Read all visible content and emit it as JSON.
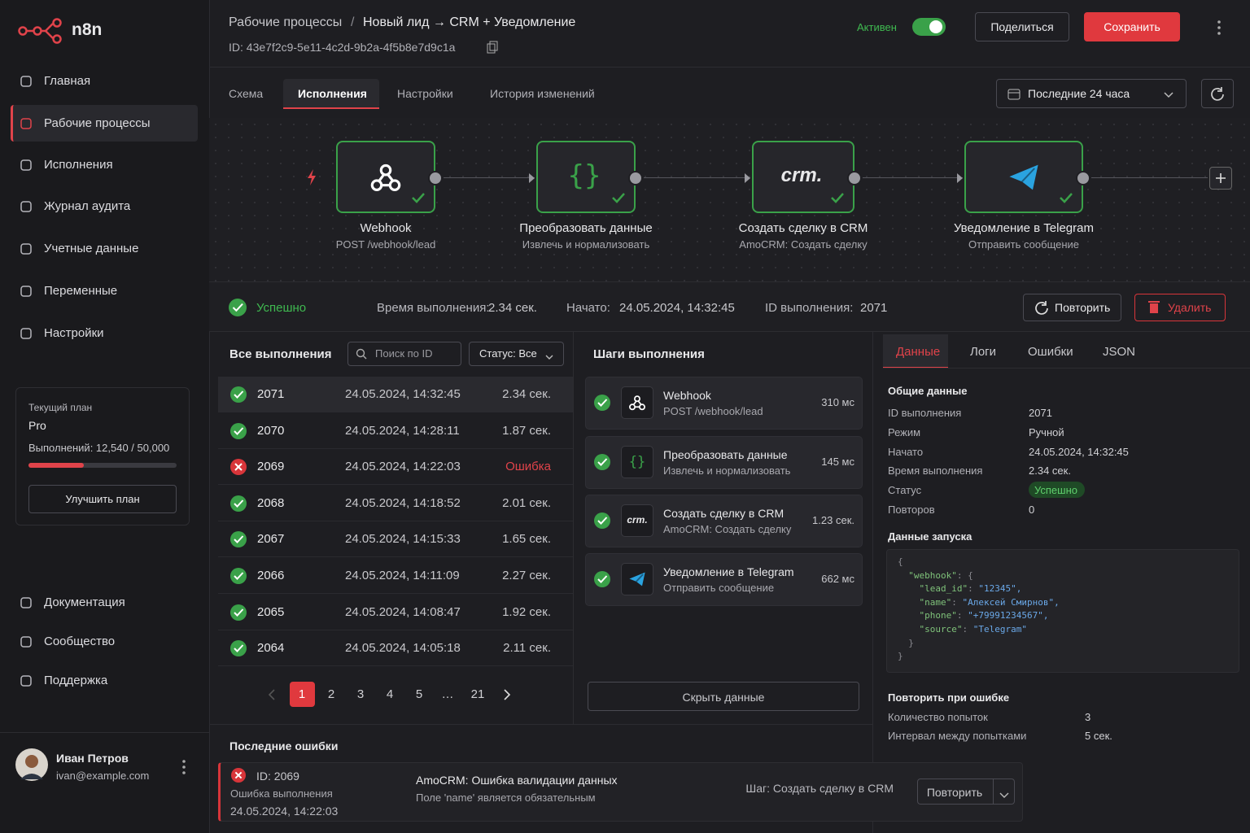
{
  "sidebar": {
    "logo": "n8n",
    "nav": [
      "Главная",
      "Рабочие процессы",
      "Исполнения",
      "Журнал аудита",
      "Учетные данные",
      "Переменные",
      "Настройки"
    ],
    "plan": {
      "label": "Текущий план",
      "name": "Pro",
      "usage": "Выполнений: 12,540 / 50,000",
      "button": "Улучшить план"
    },
    "links": [
      "Документация",
      "Сообщество",
      "Поддержка"
    ],
    "user": {
      "name": "Иван Петров",
      "email": "ivan@example.com"
    }
  },
  "header": {
    "breadcrumb_root": "Рабочие процессы",
    "separator": "/",
    "title": "Новый лид → CRM + Уведомление",
    "id": "ID: 43e7f2c9-5e11-4c2d-9b2a-4f5b8e7d9c1a",
    "status": "Активен",
    "share": "Поделиться",
    "save": "Сохранить"
  },
  "tabs": [
    "Схема",
    "Исполнения",
    "Настройки",
    "История изменений"
  ],
  "range": "Последние 24 часа",
  "nodes": [
    {
      "title": "Webhook",
      "subtitle": "POST /webhook/lead"
    },
    {
      "icon": "{}",
      "title": "Преобразовать данные",
      "subtitle": "Извлечь и нормализовать"
    },
    {
      "icon": "crm.",
      "title": "Создать сделку в CRM",
      "subtitle": "AmoCRM: Создать сделку"
    },
    {
      "title": "Уведомление в Telegram",
      "subtitle": "Отправить сообщение"
    }
  ],
  "summary": {
    "status": "Успешно",
    "duration_label": "Время выполнения:",
    "duration": "2.34 сек.",
    "started_label": "Начато:",
    "started": "24.05.2024, 14:32:45",
    "id_label": "ID выполнения:",
    "id": "2071",
    "retry": "Повторить",
    "delete": "Удалить"
  },
  "executions": {
    "title": "Все выполнения",
    "search": "Поиск по ID",
    "filter": "Статус: Все",
    "rows": [
      {
        "id": "2071",
        "started": "24.05.2024, 14:32:45",
        "duration": "2.34 сек.",
        "status": "success"
      },
      {
        "id": "2070",
        "started": "24.05.2024, 14:28:11",
        "duration": "1.87 сек.",
        "status": "success"
      },
      {
        "id": "2069",
        "started": "24.05.2024, 14:22:03",
        "duration": "Ошибка",
        "status": "error"
      },
      {
        "id": "2068",
        "started": "24.05.2024, 14:18:52",
        "duration": "2.01 сек.",
        "status": "success"
      },
      {
        "id": "2067",
        "started": "24.05.2024, 14:15:33",
        "duration": "1.65 сек.",
        "status": "success"
      },
      {
        "id": "2066",
        "started": "24.05.2024, 14:11:09",
        "duration": "2.27 сек.",
        "status": "success"
      },
      {
        "id": "2065",
        "started": "24.05.2024, 14:08:47",
        "duration": "1.92 сек.",
        "status": "success"
      },
      {
        "id": "2064",
        "started": "24.05.2024, 14:05:18",
        "duration": "2.11 сек.",
        "status": "success"
      }
    ],
    "pages": [
      "1",
      "2",
      "3",
      "4",
      "5",
      "…",
      "21"
    ]
  },
  "steps": {
    "title": "Шаги выполнения",
    "items": [
      {
        "title": "Webhook",
        "subtitle": "POST /webhook/lead",
        "time": "310 мс"
      },
      {
        "icon": "{}",
        "title": "Преобразовать данные",
        "subtitle": "Извлечь и нормализовать",
        "time": "145 мс"
      },
      {
        "icon": "crm.",
        "title": "Создать сделку в CRM",
        "subtitle": "AmoCRM: Создать сделку",
        "time": "1.23 сек."
      },
      {
        "title": "Уведомление в Telegram",
        "subtitle": "Отправить сообщение",
        "time": "662 мс"
      }
    ],
    "hide": "Скрыть данные"
  },
  "details": {
    "tabs": [
      "Данные",
      "Логи",
      "Ошибки",
      "JSON"
    ],
    "general_title": "Общие данные",
    "general": [
      [
        "ID выполнения",
        "2071"
      ],
      [
        "Режим",
        "Ручной"
      ],
      [
        "Начато",
        "24.05.2024, 14:32:45"
      ],
      [
        "Время выполнения",
        "2.34 сек."
      ],
      [
        "Статус",
        "Успешно"
      ],
      [
        "Повторов",
        "0"
      ]
    ],
    "trigger_title": "Данные запуска",
    "code": [
      "{",
      "  \"webhook\": {",
      "    \"lead_id\": \"12345\",",
      "    \"name\": \"Алексей Смирнов\",",
      "    \"phone\": \"+79991234567\",",
      "    \"source\": \"Telegram\"",
      "  }",
      "}"
    ],
    "retry_title": "Повторить при ошибке",
    "retry": [
      [
        "Количество попыток",
        "3"
      ],
      [
        "Интервал между попытками",
        "5 сек."
      ]
    ]
  },
  "errors": {
    "title": "Последние ошибки",
    "items": [
      {
        "id": "ID: 2069",
        "label": "Ошибка выполнения",
        "date": "24.05.2024, 14:22:03",
        "message": "AmoCRM: Ошибка валидации данных",
        "detail": "Поле 'name' является обязательным",
        "step": "Шаг: Создать сделку в CRM",
        "retry": "Повторить"
      }
    ]
  }
}
